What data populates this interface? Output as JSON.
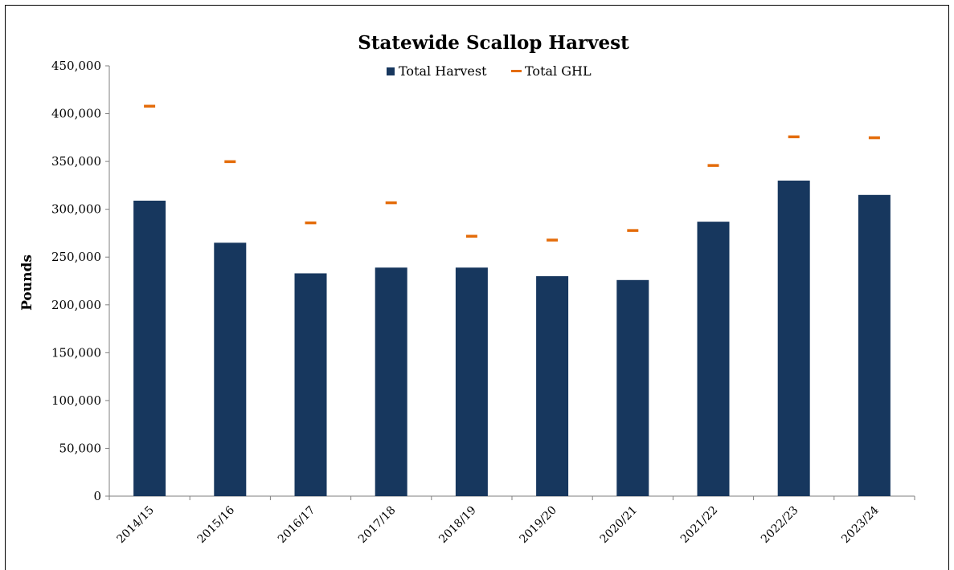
{
  "chart_data": {
    "type": "bar",
    "title": "Statewide Scallop Harvest",
    "xlabel": "",
    "ylabel": "Pounds",
    "ylim": [
      0,
      450000
    ],
    "yticks": [
      0,
      50000,
      100000,
      150000,
      200000,
      250000,
      300000,
      350000,
      400000,
      450000
    ],
    "ytick_labels": [
      "0",
      "50,000",
      "100,000",
      "150,000",
      "200,000",
      "250,000",
      "300,000",
      "350,000",
      "400,000",
      "450,000"
    ],
    "grid": false,
    "legend_position": "top-center",
    "categories": [
      "2014/15",
      "2015/16",
      "2016/17",
      "2017/18",
      "2018/19",
      "2019/20",
      "2020/21",
      "2021/22",
      "2022/23",
      "2023/24"
    ],
    "series": [
      {
        "name": "Total Harvest",
        "type": "bar",
        "color": "#17375e",
        "values": [
          309000,
          265000,
          233000,
          239000,
          239000,
          230000,
          226000,
          287000,
          330000,
          315000
        ]
      },
      {
        "name": "Total GHL",
        "type": "marker",
        "color": "#e46c0a",
        "values": [
          408000,
          350000,
          286000,
          307000,
          272000,
          268000,
          278000,
          346000,
          376000,
          375000
        ]
      }
    ]
  }
}
